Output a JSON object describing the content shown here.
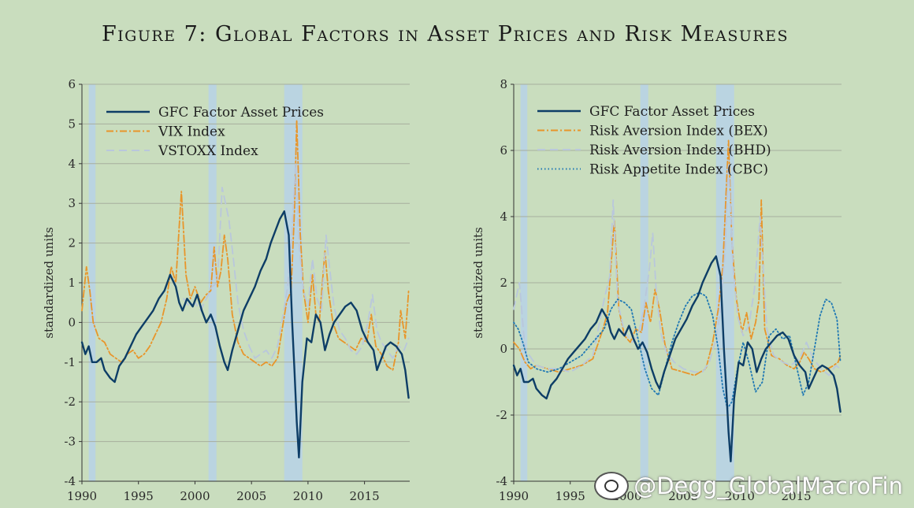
{
  "figure_title": "Figure 7: Global Factors in Asset Prices and Risk Measures",
  "watermark": "@Degg_GlobalMacroFin",
  "chart_data": [
    {
      "type": "line",
      "title": "",
      "xlabel": "",
      "ylabel": "standardized units",
      "xlim": [
        1990,
        2019
      ],
      "ylim": [
        -4,
        6
      ],
      "yticks": [
        -4,
        -3,
        -2,
        -1,
        0,
        1,
        2,
        3,
        4,
        5,
        6
      ],
      "xticks": [
        1990,
        1995,
        2000,
        2005,
        2010,
        2015
      ],
      "grid": true,
      "legend_position": "top-left",
      "recessions": [
        [
          1990.6,
          1991.2
        ],
        [
          2001.2,
          2001.9
        ],
        [
          2007.9,
          2009.5
        ]
      ],
      "series": [
        {
          "name": "GFC Factor Asset Prices",
          "style": "solid",
          "color": "#0d3d66",
          "x": [
            1990,
            1990.3,
            1990.6,
            1990.9,
            1991.3,
            1991.7,
            1992,
            1992.5,
            1992.9,
            1993.3,
            1993.8,
            1994.3,
            1994.8,
            1995.3,
            1995.8,
            1996.3,
            1996.8,
            1997.3,
            1997.8,
            1998.3,
            1998.6,
            1998.9,
            1999.3,
            1999.8,
            2000.2,
            2000.6,
            2001,
            2001.4,
            2001.8,
            2002.2,
            2002.6,
            2002.9,
            2003.3,
            2003.8,
            2004.3,
            2004.8,
            2005.3,
            2005.8,
            2006.3,
            2006.7,
            2007.1,
            2007.5,
            2007.9,
            2008.3,
            2008.6,
            2008.8,
            2009,
            2009.2,
            2009.5,
            2009.9,
            2010.3,
            2010.7,
            2011.1,
            2011.5,
            2011.9,
            2012.3,
            2012.8,
            2013.3,
            2013.8,
            2014.3,
            2014.8,
            2015.3,
            2015.8,
            2016.1,
            2016.5,
            2016.9,
            2017.3,
            2017.8,
            2018.3,
            2018.6,
            2018.9
          ],
          "y": [
            -0.5,
            -0.8,
            -0.6,
            -1.0,
            -1.0,
            -0.9,
            -1.2,
            -1.4,
            -1.5,
            -1.1,
            -0.9,
            -0.6,
            -0.3,
            -0.1,
            0.1,
            0.3,
            0.6,
            0.8,
            1.2,
            0.9,
            0.5,
            0.3,
            0.6,
            0.4,
            0.7,
            0.3,
            0.0,
            0.2,
            -0.1,
            -0.6,
            -1.0,
            -1.2,
            -0.7,
            -0.2,
            0.3,
            0.6,
            0.9,
            1.3,
            1.6,
            2.0,
            2.3,
            2.6,
            2.8,
            2.2,
            0.0,
            -1.2,
            -2.5,
            -3.4,
            -1.5,
            -0.4,
            -0.5,
            0.2,
            0.0,
            -0.7,
            -0.3,
            0.0,
            0.2,
            0.4,
            0.5,
            0.3,
            -0.2,
            -0.5,
            -0.7,
            -1.2,
            -0.9,
            -0.6,
            -0.5,
            -0.6,
            -0.8,
            -1.2,
            -1.9
          ]
        },
        {
          "name": "VIX Index",
          "style": "dashdot",
          "color": "#e8952a",
          "x": [
            1990,
            1990.4,
            1990.7,
            1991,
            1991.5,
            1992,
            1992.5,
            1993,
            1993.5,
            1994,
            1994.5,
            1995,
            1995.5,
            1996,
            1996.5,
            1997,
            1997.5,
            1997.9,
            1998.3,
            1998.6,
            1998.8,
            1999.2,
            1999.6,
            2000,
            2000.5,
            2001,
            2001.4,
            2001.7,
            2002,
            2002.3,
            2002.6,
            2002.9,
            2003.3,
            2003.8,
            2004.3,
            2004.8,
            2005.3,
            2005.8,
            2006.3,
            2006.8,
            2007.3,
            2007.7,
            2008.1,
            2008.5,
            2008.8,
            2009,
            2009.3,
            2009.6,
            2010,
            2010.4,
            2010.7,
            2011,
            2011.5,
            2011.8,
            2012.2,
            2012.7,
            2013.2,
            2013.7,
            2014.2,
            2014.7,
            2015.2,
            2015.6,
            2016,
            2016.5,
            2017,
            2017.5,
            2018,
            2018.2,
            2018.6,
            2018.9
          ],
          "y": [
            0.3,
            1.4,
            0.8,
            0.0,
            -0.4,
            -0.5,
            -0.8,
            -0.9,
            -1.0,
            -0.8,
            -0.7,
            -0.9,
            -0.8,
            -0.6,
            -0.3,
            0.0,
            0.6,
            1.4,
            1.0,
            2.4,
            3.3,
            1.2,
            0.6,
            0.9,
            0.5,
            0.7,
            0.8,
            1.9,
            0.9,
            1.3,
            2.2,
            1.6,
            0.2,
            -0.5,
            -0.8,
            -0.9,
            -1.0,
            -1.1,
            -1.0,
            -1.1,
            -0.9,
            -0.2,
            0.5,
            0.8,
            2.8,
            5.1,
            2.3,
            0.8,
            0.0,
            1.2,
            0.2,
            0.0,
            1.8,
            0.8,
            0.0,
            -0.4,
            -0.5,
            -0.6,
            -0.7,
            -0.4,
            -0.5,
            0.2,
            -0.6,
            -0.8,
            -1.1,
            -1.2,
            -0.5,
            0.3,
            -0.4,
            0.8
          ]
        },
        {
          "name": "VSTOXX Index",
          "style": "dashed",
          "color": "#b9c7dc",
          "x": [
            1999,
            1999.5,
            2000,
            2000.5,
            2001,
            2001.5,
            2002,
            2002.4,
            2002.7,
            2003,
            2003.4,
            2003.8,
            2004.3,
            2004.8,
            2005.3,
            2005.8,
            2006.3,
            2006.8,
            2007.3,
            2007.8,
            2008.2,
            2008.6,
            2008.9,
            2009.2,
            2009.6,
            2010,
            2010.4,
            2010.8,
            2011.2,
            2011.6,
            2011.9,
            2012.3,
            2012.8,
            2013.3,
            2013.8,
            2014.3,
            2014.8,
            2015.3,
            2015.7,
            2016.1,
            2016.5,
            2017,
            2017.5,
            2018,
            2018.5,
            2018.9
          ],
          "y": [
            0.6,
            0.4,
            0.5,
            0.3,
            0.6,
            0.9,
            1.0,
            3.4,
            3.0,
            2.6,
            1.6,
            0.5,
            -0.2,
            -0.6,
            -0.9,
            -0.8,
            -0.7,
            -0.9,
            -0.6,
            0.2,
            0.9,
            2.4,
            4.0,
            2.0,
            0.8,
            0.4,
            1.6,
            0.6,
            0.3,
            2.2,
            1.4,
            0.4,
            -0.2,
            -0.4,
            -0.7,
            -0.8,
            -0.6,
            0.0,
            0.7,
            -0.2,
            -0.5,
            -0.7,
            -0.9,
            -0.6,
            -0.7,
            -0.4
          ]
        }
      ]
    },
    {
      "type": "line",
      "title": "",
      "xlabel": "",
      "ylabel": "standardized units",
      "xlim": [
        1990,
        2019
      ],
      "ylim": [
        -4,
        8
      ],
      "yticks": [
        -4,
        -2,
        0,
        2,
        4,
        6,
        8
      ],
      "xticks": [
        1990,
        1995,
        2000,
        2005,
        2010,
        2015
      ],
      "grid": true,
      "legend_position": "top-left",
      "recessions": [
        [
          1990.6,
          1991.2
        ],
        [
          2001.2,
          2001.9
        ],
        [
          2007.9,
          2009.5
        ]
      ],
      "series": [
        {
          "name": "GFC Factor Asset Prices",
          "style": "solid",
          "color": "#0d3d66",
          "x": [
            1990,
            1990.3,
            1990.6,
            1990.9,
            1991.3,
            1991.7,
            1992,
            1992.5,
            1992.9,
            1993.3,
            1993.8,
            1994.3,
            1994.8,
            1995.3,
            1995.8,
            1996.3,
            1996.8,
            1997.3,
            1997.8,
            1998.3,
            1998.6,
            1998.9,
            1999.3,
            1999.8,
            2000.2,
            2000.6,
            2001,
            2001.4,
            2001.8,
            2002.2,
            2002.6,
            2002.9,
            2003.3,
            2003.8,
            2004.3,
            2004.8,
            2005.3,
            2005.8,
            2006.3,
            2006.7,
            2007.1,
            2007.5,
            2007.9,
            2008.3,
            2008.6,
            2008.8,
            2009,
            2009.2,
            2009.5,
            2009.9,
            2010.3,
            2010.7,
            2011.1,
            2011.5,
            2011.9,
            2012.3,
            2012.8,
            2013.3,
            2013.8,
            2014.3,
            2014.8,
            2015.3,
            2015.8,
            2016.1,
            2016.5,
            2016.9,
            2017.3,
            2017.8,
            2018.3,
            2018.6,
            2018.9
          ],
          "y": [
            -0.5,
            -0.8,
            -0.6,
            -1.0,
            -1.0,
            -0.9,
            -1.2,
            -1.4,
            -1.5,
            -1.1,
            -0.9,
            -0.6,
            -0.3,
            -0.1,
            0.1,
            0.3,
            0.6,
            0.8,
            1.2,
            0.9,
            0.5,
            0.3,
            0.6,
            0.4,
            0.7,
            0.3,
            0.0,
            0.2,
            -0.1,
            -0.6,
            -1.0,
            -1.2,
            -0.7,
            -0.2,
            0.3,
            0.6,
            0.9,
            1.3,
            1.6,
            2.0,
            2.3,
            2.6,
            2.8,
            2.2,
            0.0,
            -1.2,
            -2.5,
            -3.4,
            -1.5,
            -0.4,
            -0.5,
            0.2,
            0.0,
            -0.7,
            -0.3,
            0.0,
            0.2,
            0.4,
            0.5,
            0.3,
            -0.2,
            -0.5,
            -0.7,
            -1.2,
            -0.9,
            -0.6,
            -0.5,
            -0.6,
            -0.8,
            -1.2,
            -1.9
          ]
        },
        {
          "name": "Risk Aversion Index (BEX)",
          "style": "dashdot",
          "color": "#e8952a",
          "x": [
            1990,
            1990.5,
            1991,
            1991.5,
            1992,
            1993,
            1994,
            1995,
            1996,
            1997,
            1997.5,
            1997.9,
            1998.3,
            1998.6,
            1998.9,
            1999.3,
            1999.8,
            2000.3,
            2000.8,
            2001.3,
            2001.7,
            2002.1,
            2002.5,
            2002.9,
            2003.4,
            2004,
            2005,
            2006,
            2007,
            2007.6,
            2008.1,
            2008.5,
            2008.8,
            2009,
            2009.3,
            2009.7,
            2010.2,
            2010.6,
            2011,
            2011.4,
            2011.7,
            2011.9,
            2012.2,
            2012.8,
            2013.5,
            2014.2,
            2014.8,
            2015.3,
            2015.7,
            2016.1,
            2016.6,
            2017.2,
            2017.8,
            2018.3,
            2018.7,
            2018.9
          ],
          "y": [
            0.2,
            0.0,
            -0.4,
            -0.6,
            -0.5,
            -0.6,
            -0.7,
            -0.6,
            -0.5,
            -0.3,
            0.2,
            0.6,
            1.1,
            2.5,
            3.9,
            1.2,
            0.4,
            0.2,
            0.6,
            0.5,
            1.4,
            0.8,
            1.8,
            1.2,
            0.1,
            -0.6,
            -0.7,
            -0.8,
            -0.6,
            0.2,
            1.2,
            2.5,
            4.8,
            6.3,
            3.2,
            1.5,
            0.5,
            1.1,
            0.3,
            0.8,
            1.5,
            4.5,
            0.6,
            -0.2,
            -0.3,
            -0.5,
            -0.6,
            -0.4,
            -0.1,
            -0.3,
            -0.6,
            -0.7,
            -0.6,
            -0.5,
            -0.4,
            -0.2
          ]
        },
        {
          "name": "Risk Aversion Index (BHD)",
          "style": "dashed",
          "color": "#b9c7dc",
          "x": [
            1990,
            1990.5,
            1991,
            1992,
            1993,
            1994,
            1995,
            1996,
            1997,
            1997.6,
            1998,
            1998.5,
            1998.8,
            1999.2,
            1999.8,
            2000.5,
            2001,
            2001.5,
            2002,
            2002.3,
            2002.6,
            2003,
            2003.5,
            2004.2,
            2005,
            2006,
            2006.7,
            2007.3,
            2007.9,
            2008.3,
            2008.7,
            2009,
            2009.4,
            2009.8,
            2010.3,
            2010.8,
            2011.3,
            2011.8,
            2012.4,
            2013,
            2013.8,
            2014.5,
            2015.3,
            2015.9,
            2016.5,
            2017.2,
            2017.9,
            2018.5,
            2018.9
          ],
          "y": [
            1.2,
            2.0,
            0.0,
            -0.5,
            -0.6,
            -0.6,
            -0.7,
            -0.5,
            -0.2,
            0.8,
            1.5,
            2.2,
            4.5,
            1.4,
            0.5,
            0.2,
            0.4,
            1.2,
            2.4,
            3.5,
            1.8,
            0.5,
            -0.1,
            -0.4,
            -0.6,
            -0.7,
            -0.7,
            -0.4,
            0.3,
            1.2,
            3.0,
            5.6,
            2.5,
            1.0,
            0.4,
            0.7,
            1.8,
            4.0,
            0.6,
            -0.2,
            -0.4,
            -0.5,
            -0.3,
            0.2,
            -0.3,
            -0.6,
            -0.8,
            -0.5,
            -0.6
          ]
        },
        {
          "name": "Risk Appetite Index (CBC)",
          "style": "dotted",
          "color": "#1f78b4",
          "x": [
            1990,
            1990.4,
            1990.8,
            1991.3,
            1992,
            1993,
            1994,
            1995,
            1996,
            1997,
            1998,
            1998.6,
            1999.2,
            1999.8,
            2000.4,
            2001,
            2001.6,
            2002.2,
            2002.8,
            2003.4,
            2004,
            2004.6,
            2005.2,
            2005.8,
            2006.4,
            2007,
            2007.6,
            2008.1,
            2008.5,
            2008.9,
            2009.3,
            2009.8,
            2010.3,
            2010.8,
            2011.4,
            2012,
            2012.6,
            2013.2,
            2013.8,
            2014.4,
            2015,
            2015.6,
            2016.1,
            2016.6,
            2017.1,
            2017.6,
            2018.1,
            2018.6,
            2018.9
          ],
          "y": [
            0.8,
            0.6,
            0.2,
            -0.4,
            -0.6,
            -0.7,
            -0.6,
            -0.4,
            -0.2,
            0.2,
            0.6,
            1.2,
            1.5,
            1.4,
            1.2,
            0.3,
            -0.6,
            -1.2,
            -1.4,
            -0.6,
            0.2,
            0.8,
            1.3,
            1.6,
            1.7,
            1.6,
            1.0,
            0.0,
            -1.2,
            -1.8,
            -1.6,
            -0.6,
            0.2,
            -0.4,
            -1.3,
            -1.0,
            0.4,
            0.6,
            0.3,
            0.4,
            -0.5,
            -1.4,
            -1.0,
            0.0,
            1.0,
            1.5,
            1.4,
            0.9,
            -0.4
          ]
        }
      ]
    }
  ]
}
